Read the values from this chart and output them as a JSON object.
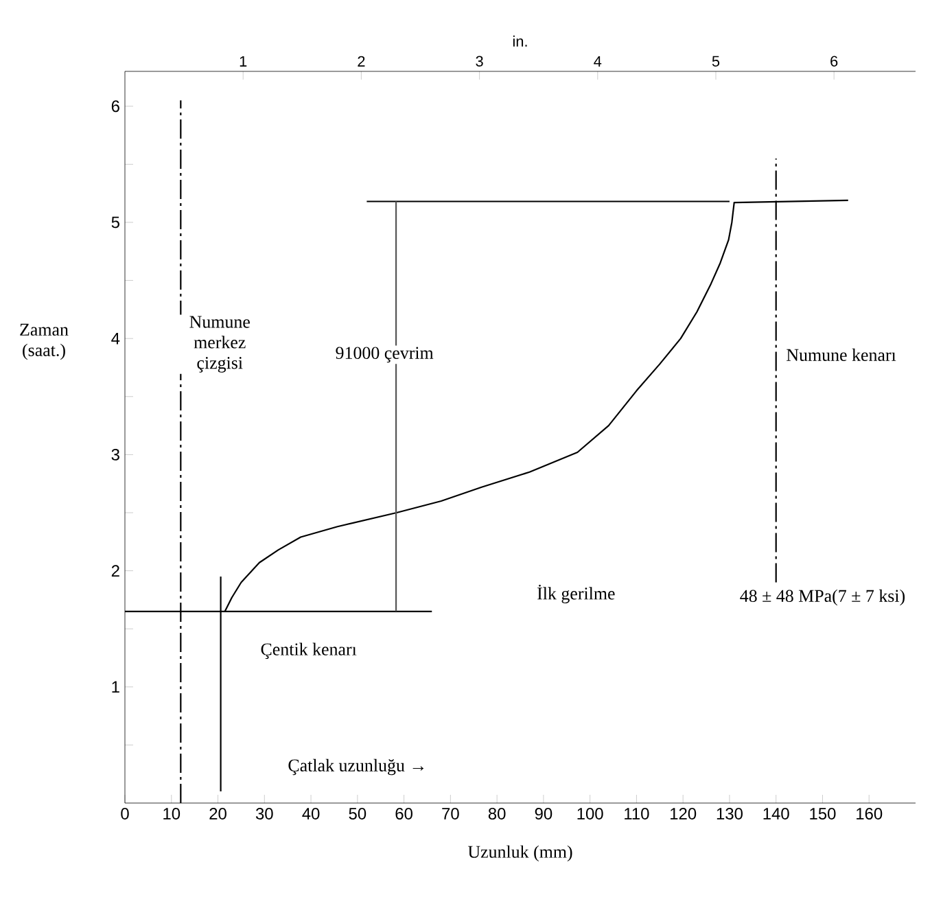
{
  "chart_data": {
    "type": "line",
    "xlabel": "Uzunluk (mm)",
    "ylabel": "Zaman (saat.)",
    "x2label": "in.",
    "xlim": [
      0,
      170
    ],
    "xticks": [
      0,
      10,
      20,
      30,
      40,
      50,
      60,
      70,
      80,
      90,
      100,
      110,
      120,
      130,
      140,
      150,
      160
    ],
    "ylim": [
      0,
      6.3
    ],
    "yticks": [
      {
        "value": 0.5,
        "label": null
      },
      1,
      {
        "value": 1.5,
        "label": null
      },
      2,
      {
        "value": 2.5,
        "label": null
      },
      3,
      {
        "value": 3.5,
        "label": null
      },
      4,
      {
        "value": 4.5,
        "label": null
      },
      5,
      {
        "value": 5.5,
        "label": null
      },
      6
    ],
    "x2lim": [
      0,
      6.69
    ],
    "x2ticks": [
      1,
      2,
      3,
      4,
      5,
      6
    ],
    "series": [
      {
        "color": "#000000",
        "line_style": "solid",
        "x": [
          21.5,
          23,
          25,
          28.9,
          33,
          37.8,
          45.7,
          58.4,
          68,
          76.7,
          87,
          97.3,
          104,
          110,
          115,
          119.5,
          123,
          126,
          128,
          129.8,
          130.5,
          131,
          155.5
        ],
        "values": [
          1.65,
          1.77,
          1.9,
          2.07,
          2.18,
          2.29,
          2.38,
          2.5,
          2.6,
          2.72,
          2.85,
          3.02,
          3.25,
          3.55,
          3.78,
          4.0,
          4.23,
          4.47,
          4.65,
          4.85,
          5.0,
          5.17,
          5.19
        ]
      },
      {
        "color": "#000000",
        "line_style": "solid",
        "x": [
          0,
          66
        ],
        "values": [
          1.65,
          1.65
        ]
      },
      {
        "color": "#000000",
        "line_style": "solid",
        "x": [
          52,
          130
        ],
        "values": [
          5.18,
          5.18
        ]
      },
      {
        "color": "#000000",
        "line_style": "dashed",
        "x": [
          12,
          12
        ],
        "values": [
          0,
          6.05
        ]
      },
      {
        "color": "#000000",
        "line_style": "solid",
        "x": [
          20.6,
          20.6
        ],
        "values": [
          0.1,
          1.95
        ]
      },
      {
        "color": "#000000",
        "line_style": "dashed",
        "x": [
          140,
          140
        ],
        "values": [
          1.9,
          5.55
        ]
      },
      {
        "color": "#555555",
        "line_style": "solid",
        "x": [
          58.3,
          58.3
        ],
        "values": [
          1.65,
          5.18
        ]
      }
    ],
    "annotations": [
      "Numune merkez çizgisi",
      "91000 çevrim",
      "Numune kenarı",
      "Çentik kenarı",
      "İlk gerilme",
      "48 ± 48 MPa(7 ± 7 ksi)",
      "Çatlak uzunluğu →"
    ],
    "grid": false,
    "marker": "none"
  }
}
